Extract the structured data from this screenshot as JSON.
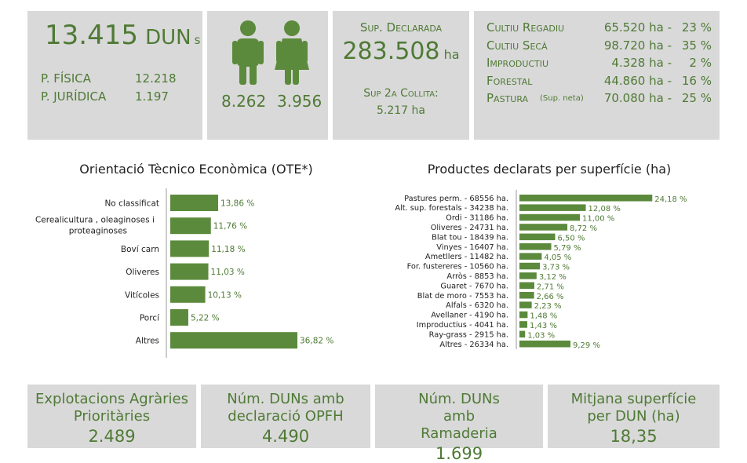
{
  "summary": {
    "duns_value": "13.415",
    "duns_unit": "DUN",
    "duns_suffix": "s",
    "fisica_label": "P. FÍSICA",
    "fisica_value": "12.218",
    "juridica_label": "P. JURÍDICA",
    "juridica_value": "1.197"
  },
  "gender": {
    "male_value": "8.262",
    "female_value": "3.956",
    "male_icon": "male-person-icon",
    "female_icon": "female-person-icon"
  },
  "surface": {
    "declared_label": "Sup. Declarada",
    "declared_value": "283.508",
    "declared_unit": "ha",
    "second_label": "Sup 2a Collita:",
    "second_value": "5.217",
    "second_unit": "ha"
  },
  "land_use": [
    {
      "label": "Cultiu Regadiu",
      "note": "",
      "value": "65.520",
      "unit": "ha -",
      "pct": "23 %"
    },
    {
      "label": "Cultiu Secà",
      "note": "",
      "value": "98.720",
      "unit": "ha -",
      "pct": "35 %"
    },
    {
      "label": "Improductiu",
      "note": "",
      "value": "4.328",
      "unit": "ha -",
      "pct": "2 %"
    },
    {
      "label": "Forestal",
      "note": "",
      "value": "44.860",
      "unit": "ha -",
      "pct": "16 %"
    },
    {
      "label": "Pastura",
      "note": "(Sup. neta)",
      "value": "70.080",
      "unit": "ha -",
      "pct": "25 %"
    }
  ],
  "chart_data": [
    {
      "type": "bar",
      "orientation": "horizontal",
      "title": "Orientació Tècnico Econòmica (OTE*)",
      "categories": [
        "No classificat",
        "Cerealicultura , oleaginoses i proteaginoses",
        "Boví carn",
        "Oliveres",
        "Vitícoles",
        "Porcí",
        "Altres"
      ],
      "values": [
        13.86,
        11.76,
        11.18,
        11.03,
        10.13,
        5.22,
        36.82
      ],
      "data_labels": [
        "13,86 %",
        "11,76 %",
        "11,18 %",
        "11,03 %",
        "10,13 %",
        "5,22 %",
        "36,82 %"
      ],
      "bar_color": "#5b8a3c",
      "xlim": [
        0,
        40
      ]
    },
    {
      "type": "bar",
      "orientation": "horizontal",
      "title": "Productes declarats per superfície (ha)",
      "categories": [
        "Pastures perm. - 68556 ha.",
        "Alt. sup. forestals - 34238 ha.",
        "Ordi - 31186 ha.",
        "Oliveres - 24731 ha.",
        "Blat tou - 18439 ha.",
        "Vinyes - 16407 ha.",
        "Ametllers - 11482 ha.",
        "For. fustereres - 10560 ha.",
        "Arròs - 8853 ha.",
        "Guaret - 7670 ha.",
        "Blat de moro - 7553 ha.",
        "Alfals - 6320 ha.",
        "Avellaner - 4190 ha.",
        "Improductius - 4041 ha.",
        "Ray-grass - 2915 ha.",
        "Altres - 26334 ha."
      ],
      "values": [
        24.18,
        12.08,
        11.0,
        8.72,
        6.5,
        5.79,
        4.05,
        3.73,
        3.12,
        2.71,
        2.66,
        2.23,
        1.48,
        1.43,
        1.03,
        9.29
      ],
      "data_labels": [
        "24,18 %",
        "12,08 %",
        "11,00 %",
        "8,72 %",
        "6,50 %",
        "5,79 %",
        "4,05 %",
        "3,73 %",
        "3,12 %",
        "2,71 %",
        "2,66 %",
        "2,23 %",
        "1,48 %",
        "1,43 %",
        "1,03 %",
        "9,29 %"
      ],
      "bar_color": "#5b8a3c",
      "xlim": [
        0,
        26
      ]
    }
  ],
  "bottom": [
    {
      "label": "Explotacions Agràries Prioritàries",
      "value": "2.489"
    },
    {
      "label": "Núm. DUNs amb declaració OPFH",
      "value": "4.490"
    },
    {
      "label": "Núm. DUNs amb Ramaderia",
      "value": "1.699"
    },
    {
      "label": "Mitjana superfície per DUN (ha)",
      "value": "18,35"
    }
  ]
}
